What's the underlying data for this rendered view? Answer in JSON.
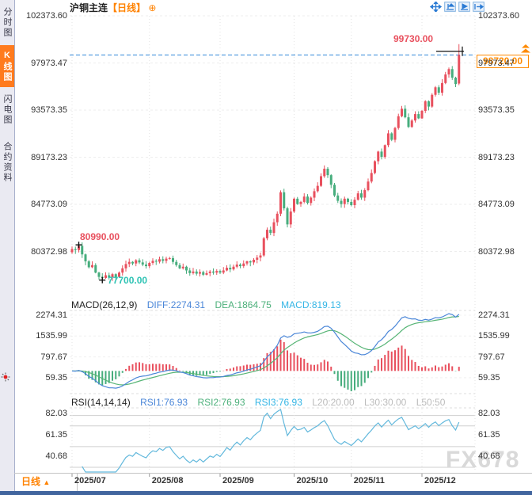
{
  "sidebar": {
    "items": [
      {
        "label": "分时图",
        "selected": false
      },
      {
        "label": "K线图",
        "selected": true
      },
      {
        "label": "闪电图",
        "selected": false
      },
      {
        "label": "合约资料",
        "selected": false
      }
    ]
  },
  "header": {
    "title": "沪铜主连",
    "period_tag": "【日线】",
    "add_icon": "⊕"
  },
  "toolbar": {
    "icons": [
      "move-crosshair",
      "fit-range",
      "play-forward",
      "pan-right"
    ]
  },
  "price_panel": {
    "y_ticks": [
      "102373.60",
      "97973.47",
      "93573.35",
      "89173.23",
      "84773.09",
      "80372.98"
    ],
    "current_price_box": "98720.00",
    "annotations": {
      "session_high": "99730.00",
      "left_high": "80990.00",
      "left_low": "77700.00"
    }
  },
  "macd_panel": {
    "title": "MACD(26,12,9)",
    "diff_label": "DIFF:2274.31",
    "dea_label": "DEA:1864.75",
    "macd_label": "MACD:819.13",
    "y_ticks": [
      "2274.31",
      "1535.99",
      "797.67",
      "59.35"
    ]
  },
  "rsi_panel": {
    "title": "RSI(14,14,14)",
    "rsi1_label": "RSI1:76.93",
    "rsi2_label": "RSI2:76.93",
    "rsi3_label": "RSI3:76.93",
    "l20_label": "L20:20.00",
    "l30_label": "L30:30.00",
    "l50_label": "L50:50",
    "y_ticks": [
      "82.03",
      "61.35",
      "40.68"
    ]
  },
  "x_axis": {
    "ticks": [
      "2025/07",
      "2025/08",
      "2025/09",
      "2025/10",
      "2025/11",
      "2025/12"
    ]
  },
  "footer": {
    "period_label": "日线",
    "arrow": "▲"
  },
  "watermark": "FX678",
  "colors": {
    "up": "#e8505e",
    "down": "#47ad7d",
    "diff_line": "#4a86d8",
    "dea_line": "#57b576",
    "rsi_line": "#62b8dc",
    "current_price_line": "#3287d9",
    "accent_orange": "#ff8200",
    "annotation_red": "#e8505e",
    "annotation_teal": "#2fc3b4"
  },
  "chart_data": {
    "type": "candlestick",
    "symbol": "沪铜主连",
    "interval": "日线",
    "price_ticks": [
      102373.6,
      97973.47,
      93573.35,
      89173.23,
      84773.09,
      80372.98
    ],
    "x_tick_labels": [
      "2025/07",
      "2025/08",
      "2025/09",
      "2025/10",
      "2025/11",
      "2025/12"
    ],
    "month_start_indices": [
      0,
      23,
      44,
      66,
      83,
      104
    ],
    "first_open": 80300,
    "closes": [
      80600,
      80500,
      80900,
      80100,
      79450,
      78900,
      79100,
      78400,
      78000,
      77900,
      78150,
      77950,
      78250,
      78000,
      78400,
      78800,
      79200,
      79400,
      79250,
      79550,
      79350,
      79150,
      79000,
      79300,
      79500,
      79420,
      79650,
      79500,
      79700,
      79750,
      79400,
      79100,
      78800,
      78950,
      78600,
      78350,
      78500,
      78300,
      78450,
      78200,
      78350,
      78500,
      78400,
      78550,
      78400,
      78600,
      78850,
      78700,
      78950,
      79150,
      79000,
      79250,
      79450,
      79350,
      79600,
      79800,
      80000,
      81600,
      82400,
      82100,
      83100,
      83900,
      85900,
      84400,
      82900,
      84100,
      85300,
      84800,
      85000,
      85500,
      84900,
      85400,
      86000,
      86500,
      87400,
      88100,
      87500,
      86600,
      85600,
      85100,
      84800,
      85300,
      85000,
      84700,
      85200,
      85800,
      85400,
      86100,
      86900,
      87700,
      88800,
      89700,
      89200,
      90300,
      91400,
      90800,
      91900,
      93000,
      93700,
      92900,
      92000,
      92600,
      93200,
      92800,
      93500,
      94400,
      93900,
      95000,
      95700,
      95200,
      96100,
      96900,
      97400,
      96600,
      96000,
      98720
    ],
    "marked_high": {
      "index": 2,
      "price": 80990.0
    },
    "marked_low": {
      "index": 9,
      "price": 77700.0
    },
    "last_candle": {
      "open": 96050,
      "high": 99730,
      "low": 95900,
      "close": 98720
    },
    "current_price": 98720.0,
    "indicators": {
      "macd": {
        "params": [
          26,
          12,
          9
        ],
        "diff": 2274.31,
        "dea": 1864.75,
        "macd": 819.13,
        "axis_ticks": [
          2274.31,
          1535.99,
          797.67,
          59.35
        ]
      },
      "rsi": {
        "params": [
          14,
          14,
          14
        ],
        "rsi1": 76.93,
        "rsi2": 76.93,
        "rsi3": 76.93,
        "levels": {
          "l20": 20.0,
          "l30": 30.0,
          "l50": 50
        },
        "axis_ticks": [
          82.03,
          61.35,
          40.68
        ],
        "grid_levels": [
          80,
          70,
          50,
          30
        ]
      }
    }
  }
}
